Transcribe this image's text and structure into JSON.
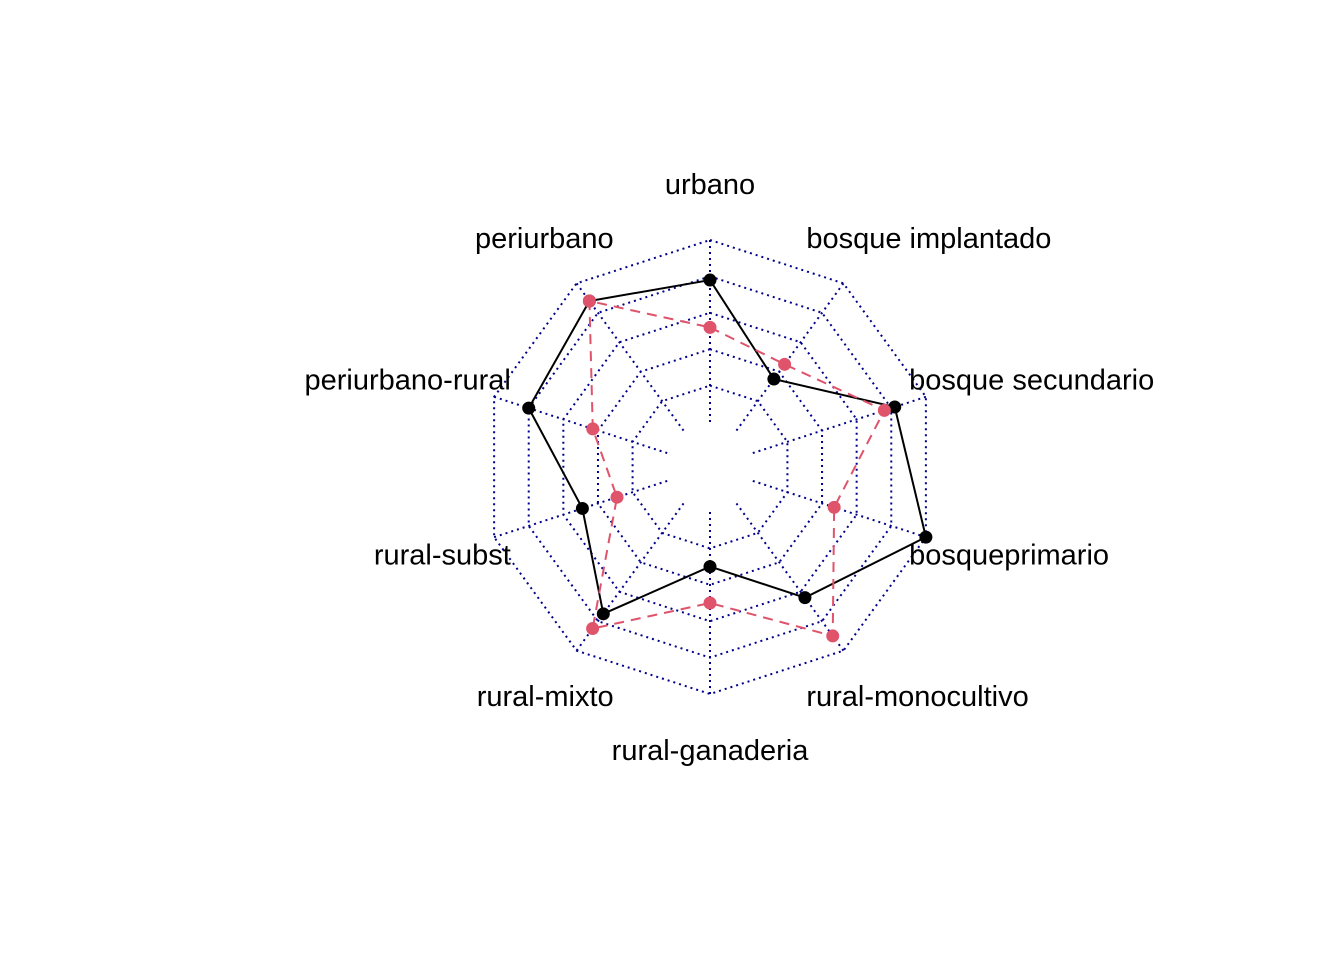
{
  "chart_data": {
    "type": "radar",
    "axes": [
      "urbano",
      "bosque implantado",
      "bosque secundario",
      "bosqueprimario",
      "rural-monocultivo",
      "rural-ganaderia",
      "rural-mixto",
      "rural-subst",
      "periurbano-rural",
      "periurbano"
    ],
    "range": [
      0,
      1
    ],
    "grid_levels": 5,
    "grid_style": "dotted",
    "series": [
      {
        "values": [
          0.78,
          0.35,
          0.82,
          1.0,
          0.64,
          0.3,
          0.75,
          0.49,
          0.8,
          0.88
        ],
        "color": "#000000",
        "line_style": "solid"
      },
      {
        "values": [
          0.52,
          0.45,
          0.76,
          0.47,
          0.9,
          0.5,
          0.85,
          0.29,
          0.43,
          0.88
        ],
        "color": "#DF536B",
        "line_style": "dashed"
      }
    ],
    "colors": {
      "grid": "#00008B",
      "series_1": "#000000",
      "series_2": "#DF536B"
    }
  }
}
